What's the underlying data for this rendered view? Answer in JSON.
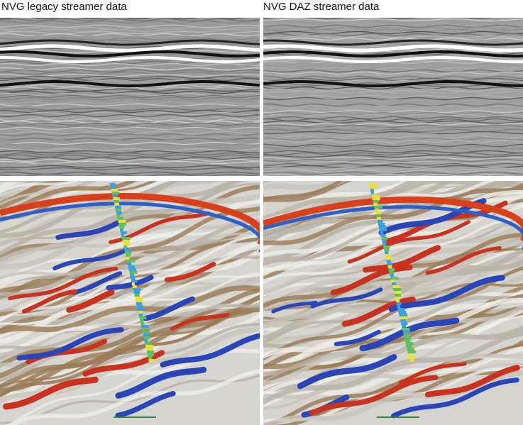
{
  "panels": [
    {
      "label": "NVG legacy streamer data"
    },
    {
      "label": "NVG DAZ streamer data"
    }
  ]
}
